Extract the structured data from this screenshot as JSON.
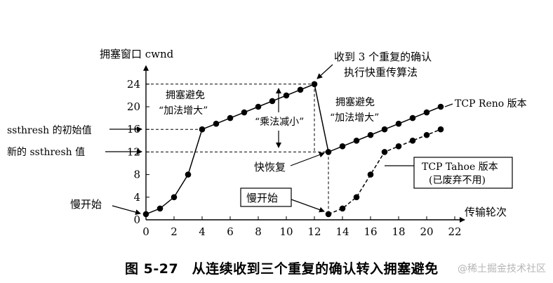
{
  "chart_data": {
    "type": "line",
    "ylabel": "拥塞窗口 cwnd",
    "xlabel": "传输轮次",
    "xlim": [
      0,
      22
    ],
    "ylim": [
      0,
      24
    ],
    "x_ticks": [
      0,
      2,
      4,
      6,
      8,
      10,
      12,
      14,
      16,
      18,
      20,
      22
    ],
    "y_ticks": [
      0,
      4,
      8,
      12,
      16,
      20,
      24
    ],
    "grid": false,
    "reference_lines": [
      {
        "y": 24,
        "x_to": 12
      },
      {
        "y": 16,
        "x_to": 4
      },
      {
        "y": 12,
        "x_to": 13
      },
      {
        "x": 12,
        "y_from": 24,
        "y_to": 12
      },
      {
        "x": 13,
        "y_from": 12,
        "y_to": 1
      }
    ],
    "series": [
      {
        "name": "TCP Reno 版本",
        "style": "solid",
        "x": [
          0,
          1,
          2,
          3,
          4,
          5,
          6,
          7,
          8,
          9,
          10,
          11,
          12,
          13,
          14,
          15,
          16,
          17,
          18,
          19,
          20,
          21
        ],
        "y": [
          1,
          2,
          4,
          8,
          16,
          17,
          18,
          19,
          20,
          21,
          22,
          23,
          24,
          12,
          13,
          14,
          15,
          16,
          17,
          18,
          19,
          20
        ]
      },
      {
        "name": "TCP Tahoe 版本",
        "style": "dashed",
        "x": [
          13,
          14,
          15,
          16,
          17,
          18,
          19,
          20,
          21
        ],
        "y": [
          1,
          2,
          4,
          8,
          12,
          13,
          14,
          15,
          16
        ]
      }
    ],
    "annotations": {
      "left_ssthresh_init": "ssthresh 的初始值",
      "left_ssthresh_new": "新的 ssthresh 值",
      "left_slow_start": "慢开始",
      "ca1_line1": "拥塞避免",
      "ca1_line2": "“加法增大”",
      "md_label": "“乘法减小”",
      "dup_ack_line1": "收到 3 个重复的确认",
      "dup_ack_line2": "执行快重传算法",
      "ca2_line1": "拥塞避免",
      "ca2_line2": "“加法增大”",
      "fast_recovery": "快恢复",
      "slow_start_box": "慢开始",
      "reno_label": "TCP Reno 版本",
      "tahoe_line1": "TCP Tahoe 版本",
      "tahoe_line2": "(已废弃不用)"
    }
  },
  "figure": {
    "caption": "图 5-27　从连续收到三个重复的确认转入拥塞避免",
    "watermark": "@稀土掘金技术社区"
  }
}
